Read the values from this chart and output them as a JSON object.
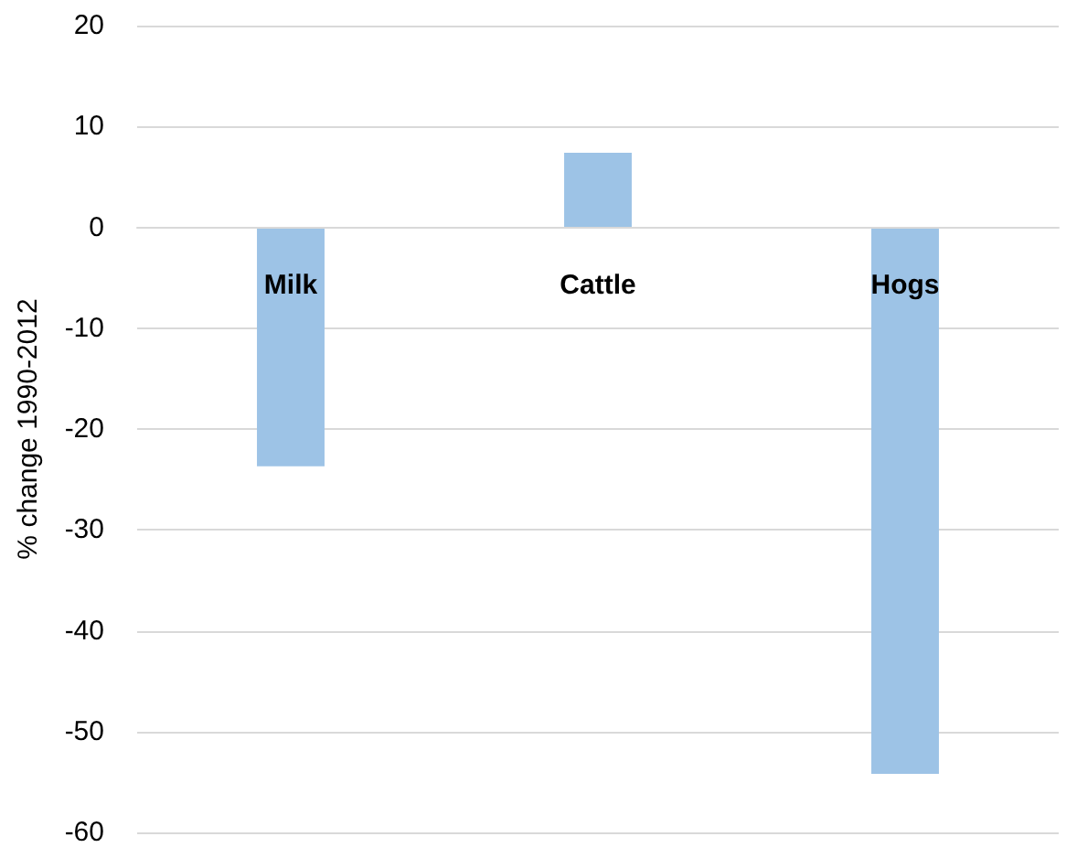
{
  "chart_data": {
    "type": "bar",
    "ylabel": "% change 1990-2012",
    "categories": [
      "Milk",
      "Cattle",
      "Hogs"
    ],
    "values": [
      -23.7,
      7.4,
      -54.2
    ],
    "color": "#9dc3e6",
    "ylim": [
      -60,
      20
    ],
    "yticks": [
      -60,
      -50,
      -40,
      -30,
      -20,
      -10,
      0,
      10,
      20
    ],
    "grid": "y"
  }
}
